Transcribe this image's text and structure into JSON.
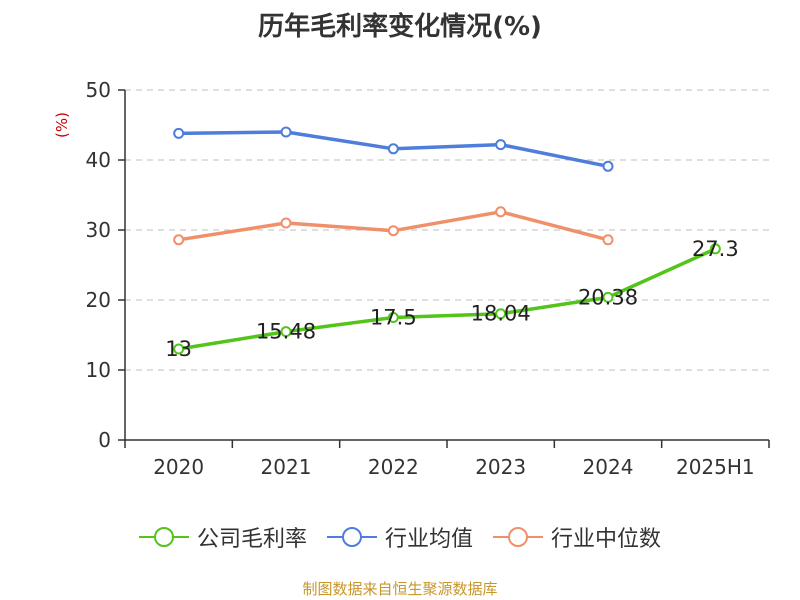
{
  "chart_data": {
    "type": "line",
    "title": "历年毛利率变化情况(%)",
    "ylabel": "(%)",
    "xlabel": "",
    "categories": [
      "2020",
      "2021",
      "2022",
      "2023",
      "2024",
      "2025H1"
    ],
    "ylim": [
      0,
      50
    ],
    "yticks": [
      0,
      10,
      20,
      30,
      40,
      50
    ],
    "grid": true,
    "legend_position": "bottom",
    "series": [
      {
        "name": "公司毛利率",
        "color": "#52c41a",
        "values": [
          13,
          15.48,
          17.5,
          18.04,
          20.38,
          27.3
        ],
        "labels": [
          "13",
          "15.48",
          "17.5",
          "18.04",
          "20.38",
          "27.3"
        ]
      },
      {
        "name": "行业均值",
        "color": "#4e7ddb",
        "values": [
          43.8,
          44.0,
          41.6,
          42.2,
          39.1,
          null
        ]
      },
      {
        "name": "行业中位数",
        "color": "#f0906a",
        "values": [
          28.6,
          31.0,
          29.9,
          32.6,
          28.6,
          null
        ]
      }
    ]
  },
  "source_text": "制图数据来自恒生聚源数据库",
  "colors": {
    "ylabel": "#cc0000",
    "source": "#c8962a",
    "axis": "#333333",
    "grid": "#cccccc"
  }
}
